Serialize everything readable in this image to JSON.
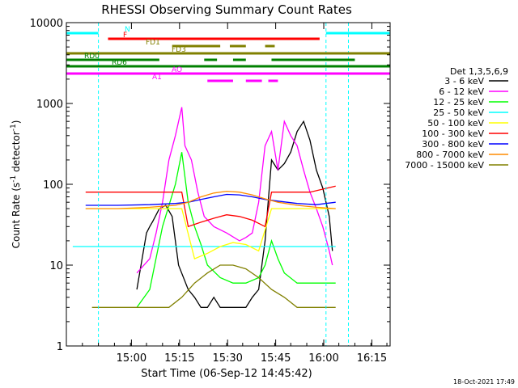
{
  "chart_data": {
    "type": "line",
    "title": "RHESSI Observing Summary Count Rates",
    "xlabel": "Start Time (06-Sep-12 14:45:42)",
    "ylabel": "Count Rate (s",
    "ylabel_sup1": "-1",
    "ylabel_mid": " detector",
    "ylabel_sup2": "-1",
    "ylabel_end": ")",
    "timestamp": "18-Oct-2021 17:49",
    "yscale": "log",
    "ylim": [
      1,
      10000
    ],
    "xlim_minutes": [
      -6,
      95
    ],
    "x_ticks": [
      {
        "m": 14.3,
        "label": "15:00"
      },
      {
        "m": 29.3,
        "label": "15:15"
      },
      {
        "m": 44.3,
        "label": "15:30"
      },
      {
        "m": 59.3,
        "label": "15:45"
      },
      {
        "m": 74.3,
        "label": "16:00"
      },
      {
        "m": 89.3,
        "label": "16:15"
      }
    ],
    "y_ticks": [
      {
        "v": 1,
        "label": "1"
      },
      {
        "v": 10,
        "label": "10"
      },
      {
        "v": 100,
        "label": "100"
      },
      {
        "v": 1000,
        "label": "1000"
      },
      {
        "v": 10000,
        "label": "10000"
      }
    ],
    "legend_title": "Det 1,3,5,6,9",
    "legend_position": "right",
    "series": [
      {
        "name": "3 - 6 keV",
        "color": "#000000",
        "points": [
          [
            16,
            5
          ],
          [
            19,
            25
          ],
          [
            20,
            30
          ],
          [
            21,
            35
          ],
          [
            23,
            50
          ],
          [
            25,
            55
          ],
          [
            27,
            40
          ],
          [
            29,
            10
          ],
          [
            32,
            5
          ],
          [
            34,
            4
          ],
          [
            36,
            3
          ],
          [
            38,
            3
          ],
          [
            40,
            4
          ],
          [
            42,
            3
          ],
          [
            44,
            3
          ],
          [
            46,
            3
          ],
          [
            48,
            3
          ],
          [
            50,
            3
          ],
          [
            52,
            4
          ],
          [
            54,
            5
          ],
          [
            56,
            20
          ],
          [
            58,
            200
          ],
          [
            60,
            150
          ],
          [
            62,
            180
          ],
          [
            64,
            250
          ],
          [
            66,
            450
          ],
          [
            68,
            600
          ],
          [
            70,
            350
          ],
          [
            72,
            150
          ],
          [
            74,
            90
          ],
          [
            76,
            40
          ],
          [
            77,
            15
          ]
        ]
      },
      {
        "name": "6 - 12 keV",
        "color": "#ff00ff",
        "points": [
          [
            16,
            8
          ],
          [
            20,
            12
          ],
          [
            22,
            25
          ],
          [
            24,
            60
          ],
          [
            26,
            200
          ],
          [
            28,
            400
          ],
          [
            30,
            900
          ],
          [
            31,
            300
          ],
          [
            33,
            200
          ],
          [
            35,
            80
          ],
          [
            37,
            40
          ],
          [
            40,
            30
          ],
          [
            44,
            25
          ],
          [
            48,
            20
          ],
          [
            50,
            22
          ],
          [
            52,
            25
          ],
          [
            54,
            60
          ],
          [
            56,
            300
          ],
          [
            58,
            450
          ],
          [
            60,
            150
          ],
          [
            62,
            600
          ],
          [
            64,
            400
          ],
          [
            66,
            300
          ],
          [
            68,
            150
          ],
          [
            70,
            80
          ],
          [
            72,
            50
          ],
          [
            74,
            30
          ],
          [
            76,
            15
          ],
          [
            77,
            10
          ]
        ]
      },
      {
        "name": "12 - 25 keV",
        "color": "#00ff00",
        "points": [
          [
            16,
            3
          ],
          [
            20,
            5
          ],
          [
            24,
            30
          ],
          [
            28,
            100
          ],
          [
            30,
            250
          ],
          [
            32,
            60
          ],
          [
            34,
            30
          ],
          [
            36,
            18
          ],
          [
            38,
            10
          ],
          [
            42,
            7
          ],
          [
            46,
            6
          ],
          [
            50,
            6
          ],
          [
            54,
            7
          ],
          [
            56,
            10
          ],
          [
            58,
            20
          ],
          [
            60,
            12
          ],
          [
            62,
            8
          ],
          [
            66,
            6
          ],
          [
            70,
            6
          ],
          [
            74,
            6
          ],
          [
            78,
            6
          ]
        ]
      },
      {
        "name": "25 - 50 keV",
        "color": "#00ffff",
        "points": [
          [
            -4,
            17
          ],
          [
            0,
            17
          ],
          [
            5,
            17
          ],
          [
            10,
            17
          ],
          [
            15,
            17
          ],
          [
            20,
            17
          ],
          [
            25,
            17
          ],
          [
            30,
            17
          ],
          [
            35,
            17
          ],
          [
            40,
            17
          ],
          [
            45,
            17
          ],
          [
            50,
            17
          ],
          [
            55,
            17
          ],
          [
            60,
            17
          ],
          [
            65,
            17
          ],
          [
            70,
            17
          ],
          [
            75,
            17
          ],
          [
            78,
            17
          ]
        ]
      },
      {
        "name": "50 - 100 keV",
        "color": "#ffff00",
        "points": [
          [
            0,
            50
          ],
          [
            20,
            50
          ],
          [
            30,
            50
          ],
          [
            34,
            12
          ],
          [
            38,
            14
          ],
          [
            42,
            17
          ],
          [
            46,
            19
          ],
          [
            50,
            18
          ],
          [
            54,
            15
          ],
          [
            58,
            50
          ],
          [
            70,
            50
          ],
          [
            78,
            50
          ]
        ]
      },
      {
        "name": "100 - 300 keV",
        "color": "#ff0000",
        "points": [
          [
            0,
            80
          ],
          [
            20,
            80
          ],
          [
            30,
            80
          ],
          [
            32,
            30
          ],
          [
            36,
            34
          ],
          [
            40,
            38
          ],
          [
            44,
            42
          ],
          [
            48,
            40
          ],
          [
            52,
            36
          ],
          [
            56,
            30
          ],
          [
            58,
            80
          ],
          [
            70,
            80
          ],
          [
            78,
            95
          ]
        ]
      },
      {
        "name": "300 - 800 keV",
        "color": "#0000ff",
        "points": [
          [
            0,
            55
          ],
          [
            10,
            55
          ],
          [
            20,
            56
          ],
          [
            28,
            58
          ],
          [
            32,
            60
          ],
          [
            36,
            65
          ],
          [
            40,
            70
          ],
          [
            44,
            75
          ],
          [
            48,
            74
          ],
          [
            52,
            70
          ],
          [
            56,
            65
          ],
          [
            60,
            62
          ],
          [
            66,
            58
          ],
          [
            72,
            56
          ],
          [
            78,
            60
          ]
        ]
      },
      {
        "name": "800 - 7000 keV",
        "color": "#ff8c00",
        "points": [
          [
            0,
            50
          ],
          [
            10,
            50
          ],
          [
            20,
            52
          ],
          [
            28,
            55
          ],
          [
            32,
            60
          ],
          [
            36,
            70
          ],
          [
            40,
            78
          ],
          [
            44,
            82
          ],
          [
            48,
            80
          ],
          [
            52,
            74
          ],
          [
            56,
            66
          ],
          [
            60,
            60
          ],
          [
            66,
            55
          ],
          [
            72,
            52
          ],
          [
            78,
            50
          ]
        ]
      },
      {
        "name": "7000 - 15000 keV",
        "color": "#808000",
        "points": [
          [
            2,
            3
          ],
          [
            8,
            3
          ],
          [
            14,
            3
          ],
          [
            18,
            3
          ],
          [
            22,
            3
          ],
          [
            26,
            3
          ],
          [
            30,
            4
          ],
          [
            34,
            6
          ],
          [
            38,
            8
          ],
          [
            42,
            10
          ],
          [
            46,
            10
          ],
          [
            50,
            9
          ],
          [
            54,
            7
          ],
          [
            58,
            5
          ],
          [
            62,
            4
          ],
          [
            66,
            3
          ],
          [
            70,
            3
          ],
          [
            74,
            3
          ],
          [
            78,
            3
          ]
        ]
      }
    ],
    "flag_bars": [
      {
        "label": "N",
        "color": "#00ffff",
        "segments": [
          [
            -6,
            4
          ],
          [
            75,
            95
          ]
        ]
      },
      {
        "label": "F",
        "color": "#ff0000",
        "segments": [
          [
            7,
            73
          ]
        ]
      },
      {
        "label": "FD1",
        "color": "#808000",
        "segments": [
          [
            27,
            42
          ],
          [
            45,
            50
          ],
          [
            56,
            59
          ]
        ]
      },
      {
        "label": "FD3",
        "color": "#808000",
        "segments": [
          [
            -6,
            95
          ]
        ]
      },
      {
        "label": "RD0",
        "color": "#008000",
        "segments": [
          [
            -6,
            23
          ],
          [
            37,
            41
          ],
          [
            46,
            50
          ],
          [
            58,
            84
          ]
        ]
      },
      {
        "label": "RD6",
        "color": "#008000",
        "segments": [
          [
            -6,
            95
          ]
        ]
      },
      {
        "label": "AO",
        "color": "#ff00ff",
        "segments": [
          [
            -6,
            95
          ]
        ]
      },
      {
        "label": "A1",
        "color": "#ff00ff",
        "segments": [
          [
            38,
            46
          ],
          [
            50,
            55
          ],
          [
            57,
            60
          ]
        ]
      }
    ],
    "cyan_verticals": [
      -6,
      4,
      75,
      82,
      95
    ]
  }
}
